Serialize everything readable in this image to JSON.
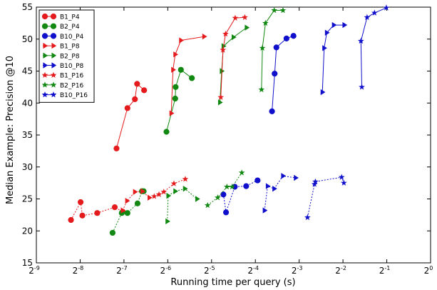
{
  "chart_data": {
    "type": "line",
    "xlabel": "Running time per query (s)",
    "ylabel": "Median Example: Precision @10",
    "x_scale": "log2",
    "xlim": [
      -9,
      0
    ],
    "ylim": [
      15,
      55
    ],
    "x_ticks": [
      {
        "base": "2",
        "exp": "-9"
      },
      {
        "base": "2",
        "exp": "-8"
      },
      {
        "base": "2",
        "exp": "-7"
      },
      {
        "base": "2",
        "exp": "-6"
      },
      {
        "base": "2",
        "exp": "-5"
      },
      {
        "base": "2",
        "exp": "-4"
      },
      {
        "base": "2",
        "exp": "-3"
      },
      {
        "base": "2",
        "exp": "-2"
      },
      {
        "base": "2",
        "exp": "-1"
      },
      {
        "base": "2",
        "exp": "0"
      }
    ],
    "y_ticks": [
      15,
      20,
      25,
      30,
      35,
      40,
      45,
      50,
      55
    ],
    "grid": false,
    "legend_position": "top-left",
    "series": [
      {
        "name": "B1_P4",
        "color": "#e41a1c",
        "marker": "circle",
        "dotted": false,
        "groups": [
          {
            "x": [
              -7.17,
              -6.92,
              -6.75,
              -6.7,
              -6.54
            ],
            "y": [
              32.9,
              39.2,
              40.6,
              43.0,
              42.0
            ]
          },
          {
            "x": [
              -8.21,
              -7.99,
              -7.95,
              -7.61,
              -7.21,
              -7.03
            ],
            "y": [
              21.7,
              24.5,
              22.4,
              22.8,
              23.7,
              23.0
            ]
          }
        ]
      },
      {
        "name": "B2_P4",
        "color": "#118811",
        "marker": "circle",
        "dotted": false,
        "groups": [
          {
            "x": [
              -6.03,
              -5.83,
              -5.82,
              -5.7,
              -5.45
            ],
            "y": [
              35.5,
              40.7,
              42.5,
              45.2,
              43.9
            ]
          },
          {
            "x": [
              -7.26,
              -7.05,
              -6.92,
              -6.69,
              -6.59,
              -6.55
            ],
            "y": [
              19.7,
              22.8,
              22.8,
              24.3,
              26.2,
              26.2
            ]
          }
        ]
      },
      {
        "name": "B10_P4",
        "color": "#1010cc",
        "marker": "circle",
        "dotted": false,
        "groups": [
          {
            "x": [
              -3.62,
              -3.56,
              -3.52,
              -3.29,
              -3.13
            ],
            "y": [
              38.7,
              44.6,
              48.7,
              50.1,
              50.5
            ]
          },
          {
            "x": [
              -4.73,
              -4.67,
              -4.47,
              -4.21,
              -3.95
            ],
            "y": [
              25.7,
              22.9,
              26.9,
              27.0,
              27.9
            ]
          }
        ]
      },
      {
        "name": "B1_P8",
        "color": "#e41a1c",
        "marker": "triangle-right",
        "dotted": false,
        "groups": [
          {
            "x": [
              -5.92,
              -5.88,
              -5.83,
              -5.7,
              -5.17
            ],
            "y": [
              38.4,
              45.2,
              47.6,
              49.8,
              50.4
            ]
          },
          {
            "x": [
              -7.03,
              -6.93,
              -6.75,
              -6.58,
              -6.42
            ],
            "y": [
              23.2,
              24.7,
              26.1,
              26.2,
              25.2
            ]
          }
        ]
      },
      {
        "name": "B2_P8",
        "color": "#118811",
        "marker": "triangle-right",
        "dotted": false,
        "groups": [
          {
            "x": [
              -4.81,
              -4.77,
              -4.73,
              -4.5,
              -4.2
            ],
            "y": [
              40.1,
              45.0,
              48.9,
              50.3,
              51.8
            ]
          },
          {
            "x": [
              -6.01,
              -5.99,
              -5.83,
              -5.61,
              -5.33
            ],
            "y": [
              21.5,
              25.5,
              26.2,
              26.6,
              25.0
            ]
          }
        ]
      },
      {
        "name": "B10_P8",
        "color": "#1010cc",
        "marker": "triangle-right",
        "dotted": false,
        "groups": [
          {
            "x": [
              -2.47,
              -2.43,
              -2.37,
              -2.21,
              -1.97
            ],
            "y": [
              41.7,
              48.6,
              51.0,
              52.2,
              52.2
            ]
          },
          {
            "x": [
              -3.79,
              -3.72,
              -3.57,
              -3.37,
              -3.08
            ],
            "y": [
              23.2,
              27.0,
              26.6,
              28.6,
              28.3
            ]
          }
        ]
      },
      {
        "name": "B1_P16",
        "color": "#e41a1c",
        "marker": "star",
        "dotted": false,
        "groups": [
          {
            "x": [
              -4.79,
              -4.74,
              -4.68,
              -4.46,
              -4.24
            ],
            "y": [
              40.9,
              48.3,
              50.8,
              53.3,
              53.4
            ]
          },
          {
            "x": [
              -6.31,
              -6.2,
              -6.09,
              -5.86,
              -5.6
            ],
            "y": [
              25.4,
              25.7,
              26.1,
              27.4,
              28.1
            ]
          }
        ]
      },
      {
        "name": "B2_P16",
        "color": "#118811",
        "marker": "star",
        "dotted": false,
        "groups": [
          {
            "x": [
              -3.86,
              -3.84,
              -3.77,
              -3.57,
              -3.37
            ],
            "y": [
              42.1,
              48.6,
              52.5,
              54.5,
              54.5
            ]
          },
          {
            "x": [
              -5.09,
              -4.86,
              -4.65,
              -4.53,
              -4.31
            ],
            "y": [
              24.0,
              25.2,
              26.9,
              26.9,
              29.1
            ]
          }
        ]
      },
      {
        "name": "B10_P16",
        "color": "#1010cc",
        "marker": "star",
        "dotted": false,
        "groups": [
          {
            "x": [
              -1.57,
              -1.59,
              -1.45,
              -1.28,
              -1.01
            ],
            "y": [
              42.5,
              49.7,
              53.4,
              54.1,
              54.9
            ]
          },
          {
            "x": [
              -2.81,
              -2.65,
              -2.63,
              -2.03,
              -1.98
            ],
            "y": [
              22.1,
              27.3,
              27.7,
              28.4,
              27.5
            ]
          }
        ]
      }
    ]
  }
}
